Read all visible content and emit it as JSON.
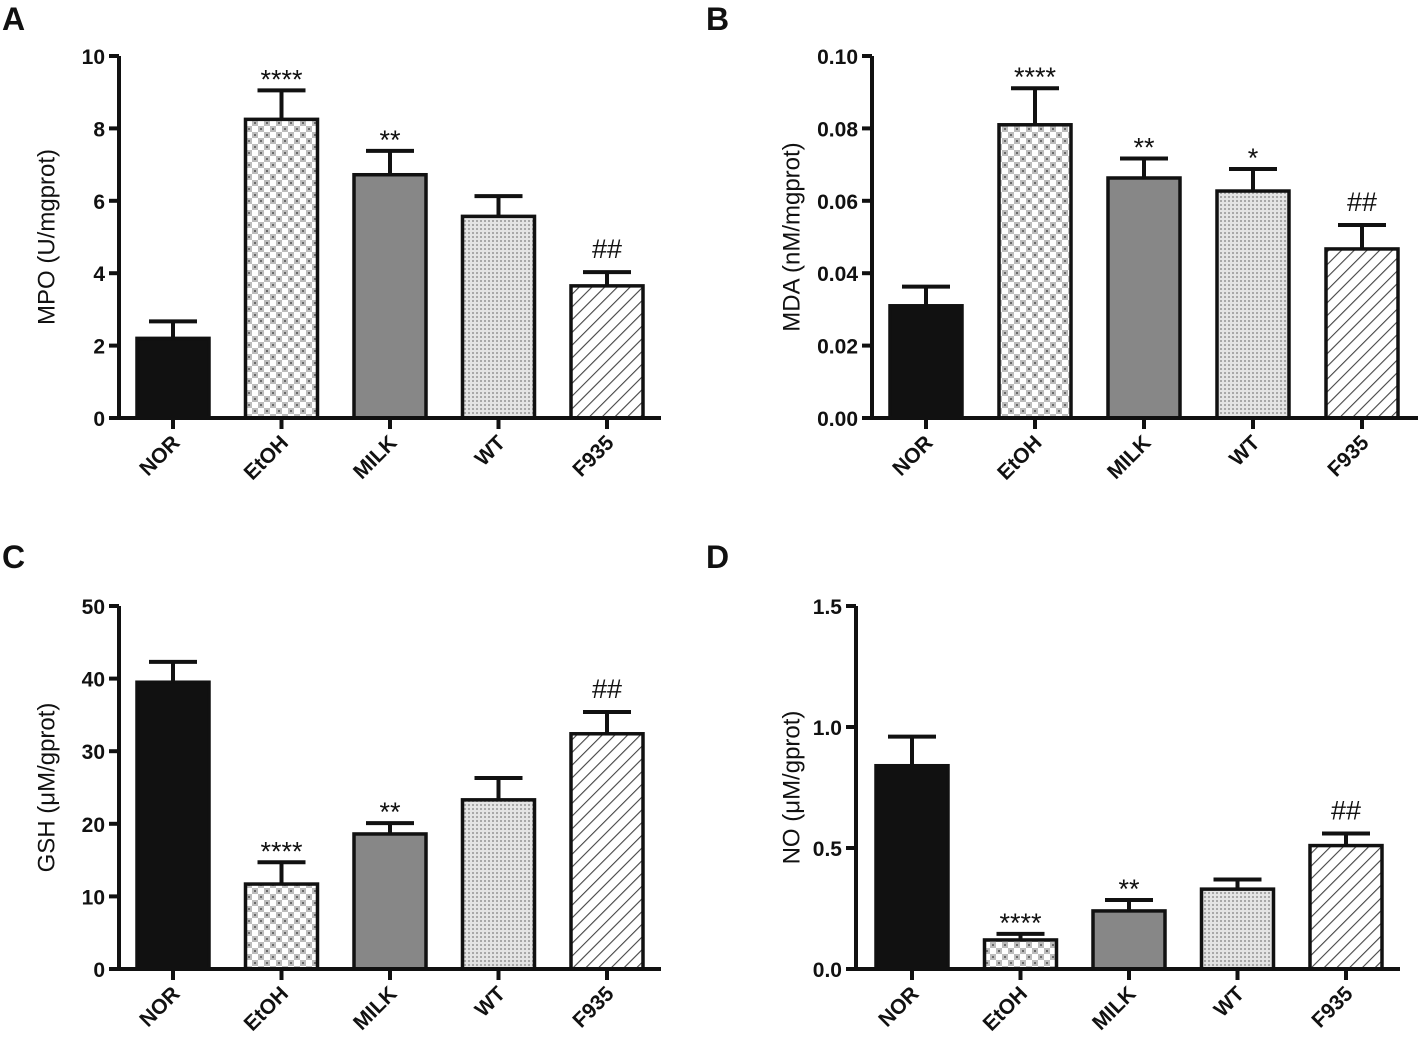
{
  "chart_data": [
    {
      "type": "bar",
      "panel": "A",
      "title": "",
      "ylabel": "MPO (U/mgprot)",
      "xlabel": "",
      "ylim": [
        0,
        10
      ],
      "yticks": [
        0,
        2,
        4,
        6,
        8,
        10
      ],
      "ytick_labels": [
        "0",
        "2",
        "4",
        "6",
        "8",
        "10"
      ],
      "categories": [
        "NOR",
        "EtOH",
        "MILK",
        "WT",
        "F935"
      ],
      "values": [
        2.2,
        8.25,
        6.72,
        5.57,
        3.65
      ],
      "error_upper": [
        0.47,
        0.8,
        0.66,
        0.56,
        0.38
      ],
      "significance": [
        "",
        "****",
        "**",
        "",
        "##"
      ],
      "grid": false,
      "legend": "none"
    },
    {
      "type": "bar",
      "panel": "B",
      "title": "",
      "ylabel": "MDA (nM/mgprot)",
      "xlabel": "",
      "ylim": [
        0,
        0.1
      ],
      "yticks": [
        0,
        0.02,
        0.04,
        0.06,
        0.08,
        0.1
      ],
      "ytick_labels": [
        "0.00",
        "0.02",
        "0.04",
        "0.06",
        "0.08",
        "0.10"
      ],
      "categories": [
        "NOR",
        "EtOH",
        "MILK",
        "WT",
        "F935"
      ],
      "values": [
        0.031,
        0.081,
        0.0663,
        0.0627,
        0.0467
      ],
      "error_upper": [
        0.0053,
        0.0101,
        0.0054,
        0.0061,
        0.0066
      ],
      "significance": [
        "",
        "****",
        "**",
        "*",
        "##"
      ],
      "grid": false,
      "legend": "none"
    },
    {
      "type": "bar",
      "panel": "C",
      "title": "",
      "ylabel": "GSH (μM/gprot)",
      "xlabel": "",
      "ylim": [
        0,
        50
      ],
      "yticks": [
        0,
        10,
        20,
        30,
        40,
        50
      ],
      "ytick_labels": [
        "0",
        "10",
        "20",
        "30",
        "40",
        "50"
      ],
      "categories": [
        "NOR",
        "EtOH",
        "MILK",
        "WT",
        "F935"
      ],
      "values": [
        39.5,
        11.7,
        18.6,
        23.3,
        32.4
      ],
      "error_upper": [
        2.8,
        3.0,
        1.5,
        3.0,
        3.0
      ],
      "significance": [
        "",
        "****",
        "**",
        "",
        "##"
      ],
      "grid": false,
      "legend": "none"
    },
    {
      "type": "bar",
      "panel": "D",
      "title": "",
      "ylabel": "NO (μM/gprot)",
      "xlabel": "",
      "ylim": [
        0,
        1.5
      ],
      "yticks": [
        0,
        0.5,
        1.0,
        1.5
      ],
      "ytick_labels": [
        "0.0",
        "0.5",
        "1.0",
        "1.5"
      ],
      "categories": [
        "NOR",
        "EtOH",
        "MILK",
        "WT",
        "F935"
      ],
      "values": [
        0.84,
        0.12,
        0.24,
        0.33,
        0.51
      ],
      "error_upper": [
        0.12,
        0.025,
        0.045,
        0.04,
        0.05
      ],
      "significance": [
        "",
        "****",
        "**",
        "",
        "##"
      ],
      "grid": false,
      "legend": "none"
    }
  ],
  "bar_styles": [
    {
      "group": "NOR",
      "fill": "solid-black",
      "color": "#111111"
    },
    {
      "group": "EtOH",
      "fill": "checker",
      "color": "#b8b8b8"
    },
    {
      "group": "MILK",
      "fill": "solid-gray",
      "color": "#878787"
    },
    {
      "group": "WT",
      "fill": "fine-dots",
      "color": "#cfcfcf"
    },
    {
      "group": "F935",
      "fill": "diagonal-hatch",
      "color": "#555555"
    }
  ]
}
